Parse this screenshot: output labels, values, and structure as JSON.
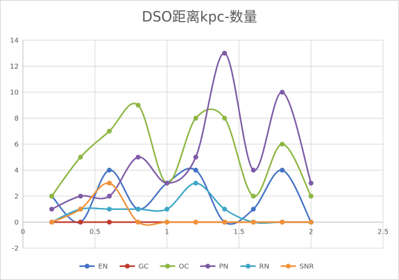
{
  "chart_data": {
    "type": "scatter",
    "title": "DSO距离kpc-数量",
    "xlabel": "",
    "ylabel": "",
    "xlim": [
      0,
      2.5
    ],
    "ylim": [
      -2,
      14
    ],
    "x_ticks": [
      "0",
      "0.5",
      "1",
      "1.5",
      "2",
      "2.5"
    ],
    "y_ticks": [
      "-2",
      "0",
      "2",
      "4",
      "6",
      "8",
      "10",
      "12",
      "14"
    ],
    "grid": true,
    "smooth_lines": true,
    "legend_position": "bottom",
    "x": [
      0.2,
      0.4,
      0.6,
      0.8,
      1.0,
      1.2,
      1.4,
      1.6,
      1.8,
      2.0
    ],
    "series": [
      {
        "name": "EN",
        "color": "#4472c4",
        "values": [
          2,
          0,
          4,
          1,
          3,
          4,
          0,
          1,
          4,
          0
        ]
      },
      {
        "name": "GC",
        "color": "#c0392b",
        "values": [
          0,
          0,
          0,
          0,
          0,
          0,
          0,
          0,
          0,
          0
        ]
      },
      {
        "name": "OC",
        "color": "#8db642",
        "values": [
          2,
          5,
          7,
          9,
          3,
          8,
          8,
          2,
          6,
          2
        ]
      },
      {
        "name": "PN",
        "color": "#7d5aa6",
        "values": [
          1,
          2,
          2,
          5,
          3,
          5,
          13,
          4,
          10,
          3
        ]
      },
      {
        "name": "RN",
        "color": "#3fa7c7",
        "values": [
          0,
          1,
          1,
          1,
          1,
          3,
          1,
          0,
          0,
          0
        ]
      },
      {
        "name": "SNR",
        "color": "#f0923a",
        "values": [
          0,
          1,
          3,
          0,
          0,
          0,
          0,
          0,
          0,
          0
        ]
      }
    ]
  }
}
